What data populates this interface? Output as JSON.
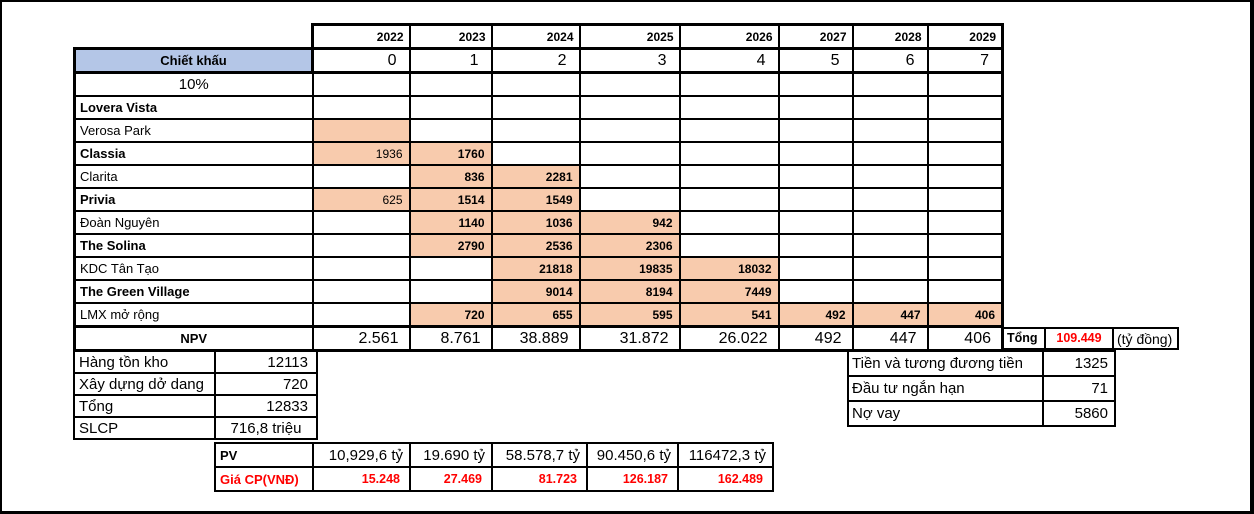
{
  "colors": {
    "header_fill": "#b4c6e7",
    "highlight_fill": "#f8cbad",
    "red_text": "#ff0000",
    "border": "#000000",
    "background": "#ffffff"
  },
  "years_row": [
    "2022",
    "2023",
    "2024",
    "2025",
    "2026",
    "2027",
    "2028",
    "2029"
  ],
  "discount": {
    "label": "Chiết khấu",
    "periods": [
      "0",
      "1",
      "2",
      "3",
      "4",
      "5",
      "6",
      "7"
    ],
    "rate": "10%"
  },
  "projects": [
    {
      "name": "Lovera Vista",
      "bold": true,
      "cells": [
        null,
        null,
        null,
        null,
        null,
        null,
        null,
        null
      ]
    },
    {
      "name": "Verosa Park",
      "bold": false,
      "cells": [
        {
          "v": "",
          "fill": true
        },
        null,
        null,
        null,
        null,
        null,
        null,
        null
      ]
    },
    {
      "name": "Classia",
      "bold": true,
      "cells": [
        {
          "v": "1936",
          "fill": true,
          "bold": false
        },
        {
          "v": "1760",
          "fill": true
        },
        null,
        null,
        null,
        null,
        null,
        null
      ]
    },
    {
      "name": "Clarita",
      "bold": false,
      "cells": [
        null,
        {
          "v": "836",
          "fill": true
        },
        {
          "v": "2281",
          "fill": true
        },
        null,
        null,
        null,
        null,
        null
      ]
    },
    {
      "name": "Privia",
      "bold": true,
      "cells": [
        {
          "v": "625",
          "fill": true,
          "bold": false
        },
        {
          "v": "1514",
          "fill": true
        },
        {
          "v": "1549",
          "fill": true
        },
        null,
        null,
        null,
        null,
        null
      ]
    },
    {
      "name": "Đoàn Nguyên",
      "bold": false,
      "cells": [
        null,
        {
          "v": "1140",
          "fill": true
        },
        {
          "v": "1036",
          "fill": true
        },
        {
          "v": "942",
          "fill": true
        },
        null,
        null,
        null,
        null
      ]
    },
    {
      "name": "The Solina",
      "bold": true,
      "cells": [
        null,
        {
          "v": "2790",
          "fill": true
        },
        {
          "v": "2536",
          "fill": true
        },
        {
          "v": "2306",
          "fill": true
        },
        null,
        null,
        null,
        null
      ]
    },
    {
      "name": "KDC Tân Tạo",
      "bold": false,
      "cells": [
        null,
        null,
        {
          "v": "21818",
          "fill": true
        },
        {
          "v": "19835",
          "fill": true
        },
        {
          "v": "18032",
          "fill": true
        },
        null,
        null,
        null
      ]
    },
    {
      "name": "The Green Village",
      "bold": true,
      "cells": [
        null,
        null,
        {
          "v": "9014",
          "fill": true
        },
        {
          "v": "8194",
          "fill": true
        },
        {
          "v": "7449",
          "fill": true
        },
        null,
        null,
        null
      ]
    },
    {
      "name": "LMX mở rộng",
      "bold": false,
      "cells": [
        null,
        {
          "v": "720",
          "fill": true
        },
        {
          "v": "655",
          "fill": true
        },
        {
          "v": "595",
          "fill": true
        },
        {
          "v": "541",
          "fill": true
        },
        {
          "v": "492",
          "fill": true
        },
        {
          "v": "447",
          "fill": true
        },
        {
          "v": "406",
          "fill": true
        }
      ]
    }
  ],
  "npv": {
    "label": "NPV",
    "values": [
      "2.561",
      "8.761",
      "38.889",
      "31.872",
      "26.022",
      "492",
      "447",
      "406"
    ]
  },
  "total": {
    "label": "Tổng",
    "value": "109.449",
    "unit": "(tỷ đồng)"
  },
  "assets": {
    "rows": [
      {
        "label": "Hàng tồn kho",
        "value": "12113"
      },
      {
        "label": "Xây dựng dở dang",
        "value": "720"
      },
      {
        "label": "Tổng",
        "value": "12833"
      },
      {
        "label": "SLCP",
        "value": "716,8 triệu"
      }
    ]
  },
  "pv": {
    "label": "PV",
    "values": [
      "10,929,6 tỷ",
      "19.690 tỷ",
      "58.578,7 tỷ",
      "90.450,6 tỷ",
      "116472,3 tỷ"
    ],
    "price_label": "Giá CP(VNĐ)",
    "price_values": [
      "15.248",
      "27.469",
      "81.723",
      "126.187",
      "162.489"
    ]
  },
  "balance": {
    "rows": [
      {
        "label": "Tiền và tương đương tiền",
        "value": "1325"
      },
      {
        "label": "Đầu tư ngắn hạn",
        "value": "71"
      },
      {
        "label": "Nợ vay",
        "value": "5860"
      }
    ]
  }
}
